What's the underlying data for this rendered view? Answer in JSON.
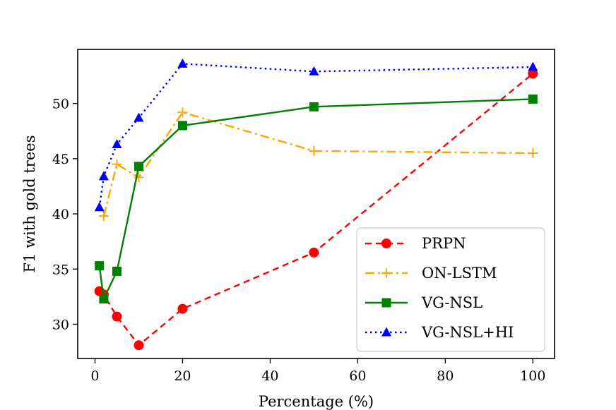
{
  "chart_data": {
    "type": "line",
    "title": "",
    "xlabel": "Percentage (%)",
    "ylabel": "F1 with gold trees",
    "xlim": [
      -3.95,
      104.95
    ],
    "ylim": [
      26.9,
      54.9
    ],
    "xticks": [
      0,
      20,
      40,
      60,
      80,
      100
    ],
    "yticks": [
      30,
      35,
      40,
      45,
      50
    ],
    "xtick_labels": [
      "0",
      "20",
      "40",
      "60",
      "80",
      "100"
    ],
    "ytick_labels": [
      "30",
      "35",
      "40",
      "45",
      "50"
    ],
    "grid": false,
    "legend_position": "lower-right",
    "series": [
      {
        "name": "PRPN",
        "color": "#ff0000",
        "linestyle": "dashed",
        "marker": "circle",
        "x": [
          1,
          2,
          5,
          10,
          20,
          50,
          100
        ],
        "y": [
          33.0,
          32.7,
          30.7,
          28.1,
          31.4,
          36.5,
          52.7
        ]
      },
      {
        "name": "ON-LSTM",
        "color": "#ffa500",
        "linestyle": "dashdot",
        "marker": "plus",
        "x": [
          2,
          5,
          10,
          20,
          50,
          100
        ],
        "y": [
          39.8,
          44.5,
          43.3,
          49.2,
          45.7,
          45.5
        ]
      },
      {
        "name": "VG-NSL",
        "color": "#008000",
        "linestyle": "solid",
        "marker": "square",
        "x": [
          1,
          2,
          5,
          10,
          20,
          50,
          100
        ],
        "y": [
          35.3,
          32.3,
          34.8,
          44.3,
          48.0,
          49.7,
          50.4
        ]
      },
      {
        "name": "VG-NSL+HI",
        "color": "#0000ff",
        "linestyle": "dotted",
        "marker": "triangle",
        "x": [
          1,
          2,
          5,
          10,
          20,
          50,
          100
        ],
        "y": [
          40.6,
          43.4,
          46.3,
          48.7,
          53.6,
          52.9,
          53.3
        ]
      }
    ]
  }
}
